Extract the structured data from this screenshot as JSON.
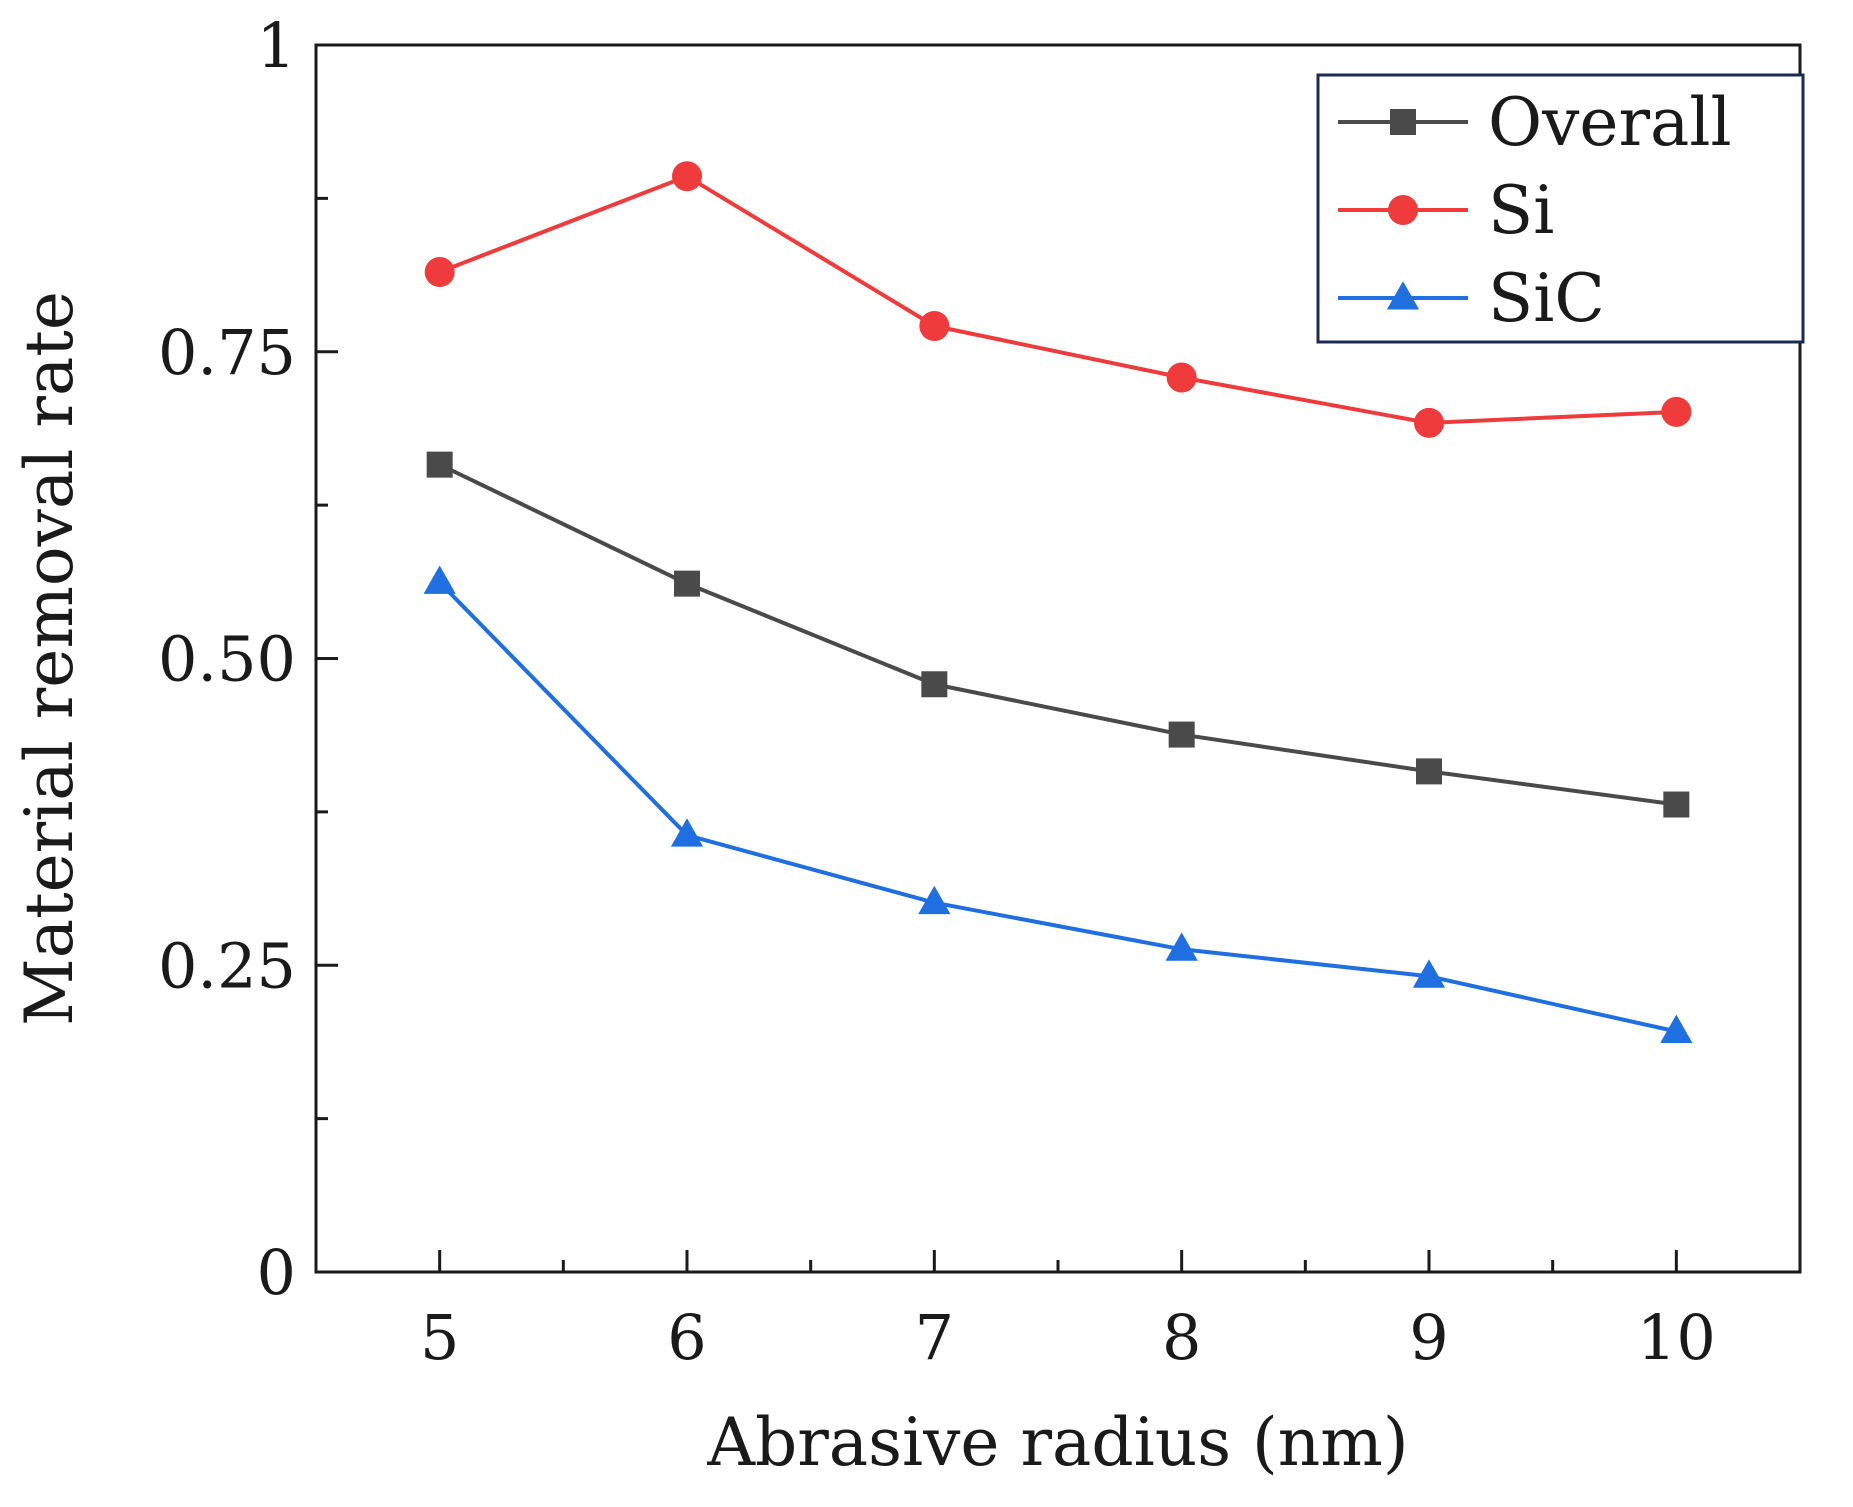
{
  "chart_data": {
    "type": "line",
    "title": "",
    "xlabel": "Abrasive radius (nm)",
    "ylabel": "Material removal rate",
    "x": [
      5,
      6,
      7,
      8,
      9,
      10
    ],
    "x_tick_labels": [
      "5",
      "6",
      "7",
      "8",
      "9",
      "10"
    ],
    "xlim": [
      4.5,
      10.5
    ],
    "ylim": [
      0,
      1
    ],
    "y_ticks": [
      0,
      0.25,
      0.5,
      0.75,
      1
    ],
    "y_tick_labels": [
      "0",
      "0.25",
      "0.50",
      "0.75",
      "1"
    ],
    "grid": false,
    "legend_position": "top-right",
    "series": [
      {
        "name": "Overall",
        "color": "#4a4a4a",
        "marker": "square",
        "values": [
          0.658,
          0.561,
          0.479,
          0.438,
          0.408,
          0.381
        ]
      },
      {
        "name": "Si",
        "color": "#ef3b3b",
        "marker": "circle",
        "values": [
          0.815,
          0.893,
          0.771,
          0.729,
          0.692,
          0.701
        ]
      },
      {
        "name": "SiC",
        "color": "#1f6fe0",
        "marker": "triangle",
        "values": [
          0.562,
          0.356,
          0.301,
          0.263,
          0.241,
          0.196
        ]
      }
    ]
  }
}
